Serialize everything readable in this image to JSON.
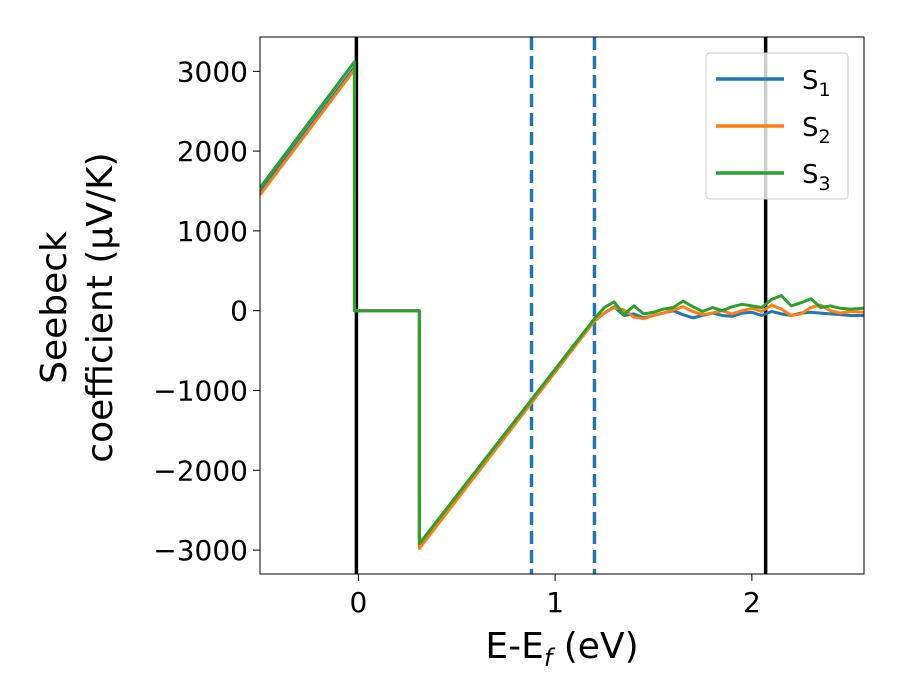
{
  "chart_data": {
    "type": "line",
    "title": "",
    "xlabel": "E-E_f (eV)",
    "xlabel_parts": {
      "main": "E-E",
      "sub": "f",
      "unit": " (eV)"
    },
    "ylabel": "Seebeck coefficient (μV/K)",
    "ylabel_lines": [
      "Seebeck",
      "coefficient  (μV/K)"
    ],
    "xlim": [
      -0.5,
      2.57
    ],
    "ylim": [
      -3300,
      3430
    ],
    "xticks": [
      0,
      1,
      2
    ],
    "xtick_labels": [
      "0",
      "1",
      "2"
    ],
    "yticks": [
      3000,
      2000,
      1000,
      0,
      -1000,
      -2000,
      -3000
    ],
    "ytick_labels": [
      "3000",
      "2000",
      "1000",
      "0",
      "−1000",
      "−2000",
      "−3000"
    ],
    "grid": false,
    "legend_position": "top-right",
    "vlines": [
      {
        "x": -0.01,
        "color": "#000000",
        "style": "solid"
      },
      {
        "x": 2.07,
        "color": "#000000",
        "style": "solid"
      },
      {
        "x": 0.88,
        "color": "#1f77b4",
        "style": "dashed"
      },
      {
        "x": 1.2,
        "color": "#1f77b4",
        "style": "dashed"
      }
    ],
    "series": [
      {
        "name": "S1",
        "name_main": "S",
        "name_sub": "1",
        "color": "#1f77b4",
        "x": [
          -0.5,
          -0.02,
          -0.02,
          0.31,
          0.31,
          1.2,
          1.25,
          1.3,
          1.35,
          1.4,
          1.45,
          1.5,
          1.55,
          1.6,
          1.65,
          1.7,
          1.75,
          1.8,
          1.85,
          1.9,
          1.95,
          2.0,
          2.05,
          2.1,
          2.15,
          2.2,
          2.25,
          2.3,
          2.35,
          2.4,
          2.45,
          2.5,
          2.57
        ],
        "y": [
          1480,
          3050,
          0,
          0,
          -2950,
          -120,
          -30,
          50,
          -60,
          -40,
          -90,
          -60,
          -30,
          0,
          -50,
          -90,
          -60,
          -30,
          -60,
          -70,
          -30,
          -20,
          -60,
          -10,
          -40,
          -60,
          -30,
          -20,
          -30,
          -40,
          -50,
          -60,
          -60
        ]
      },
      {
        "name": "S2",
        "name_main": "S",
        "name_sub": "2",
        "color": "#ff7f0e",
        "x": [
          -0.5,
          -0.02,
          -0.02,
          0.31,
          0.31,
          1.2,
          1.25,
          1.3,
          1.35,
          1.4,
          1.45,
          1.5,
          1.55,
          1.6,
          1.65,
          1.7,
          1.75,
          1.8,
          1.85,
          1.9,
          1.95,
          2.0,
          2.05,
          2.1,
          2.15,
          2.2,
          2.25,
          2.3,
          2.35,
          2.4,
          2.45,
          2.5,
          2.57
        ],
        "y": [
          1450,
          3020,
          0,
          0,
          -2980,
          -130,
          -30,
          40,
          10,
          -80,
          -100,
          -60,
          -30,
          10,
          50,
          -10,
          -50,
          -30,
          0,
          -40,
          0,
          30,
          -10,
          70,
          20,
          -60,
          -40,
          40,
          70,
          0,
          -30,
          -10,
          -20
        ]
      },
      {
        "name": "S3",
        "name_main": "S",
        "name_sub": "3",
        "color": "#2ca02c",
        "x": [
          -0.5,
          -0.02,
          -0.02,
          0.31,
          0.31,
          1.2,
          1.25,
          1.3,
          1.35,
          1.4,
          1.45,
          1.5,
          1.55,
          1.6,
          1.65,
          1.7,
          1.75,
          1.8,
          1.85,
          1.9,
          1.95,
          2.0,
          2.05,
          2.1,
          2.15,
          2.2,
          2.25,
          2.3,
          2.35,
          2.4,
          2.45,
          2.5,
          2.57
        ],
        "y": [
          1540,
          3120,
          0,
          0,
          -2920,
          -100,
          40,
          110,
          -50,
          60,
          -40,
          -20,
          20,
          40,
          120,
          50,
          -10,
          40,
          0,
          50,
          80,
          60,
          40,
          140,
          190,
          60,
          100,
          150,
          40,
          60,
          30,
          20,
          30
        ]
      }
    ]
  }
}
